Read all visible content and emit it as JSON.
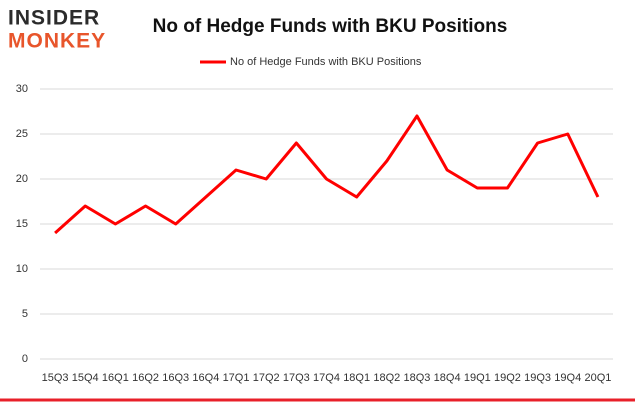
{
  "logo": {
    "line1": "INSIDER",
    "line2": "MONKEY"
  },
  "chart_data": {
    "type": "line",
    "title": "No of Hedge Funds with BKU Positions",
    "categories": [
      "15Q3",
      "15Q4",
      "16Q1",
      "16Q2",
      "16Q3",
      "16Q4",
      "17Q1",
      "17Q2",
      "17Q3",
      "17Q4",
      "18Q1",
      "18Q2",
      "18Q3",
      "18Q4",
      "19Q1",
      "19Q2",
      "19Q3",
      "19Q4",
      "20Q1"
    ],
    "series": [
      {
        "name": "No of Hedge Funds with BKU Positions",
        "color": "#ff0000",
        "values": [
          14,
          17,
          15,
          17,
          15,
          18,
          21,
          20,
          24,
          20,
          18,
          22,
          27,
          21,
          19,
          19,
          24,
          25,
          18
        ]
      }
    ],
    "ylim": [
      0,
      30
    ],
    "yticks": [
      0,
      5,
      10,
      15,
      20,
      25,
      30
    ],
    "grid": true,
    "legend": "top"
  }
}
